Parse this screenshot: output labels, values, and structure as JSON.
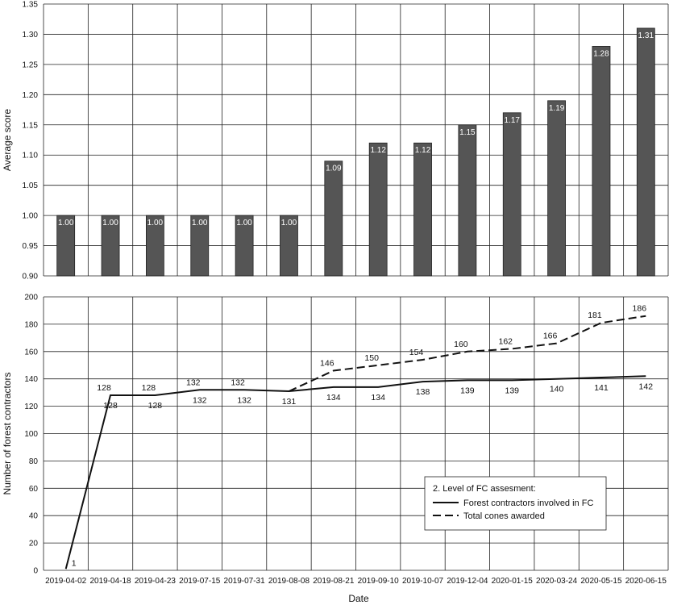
{
  "chart_data": [
    {
      "type": "bar",
      "ylabel": "Average score",
      "ylim": [
        0.9,
        1.35
      ],
      "yticks": [
        "0.90",
        "0.95",
        "1.00",
        "1.05",
        "1.10",
        "1.15",
        "1.20",
        "1.25",
        "1.30",
        "1.35"
      ],
      "grid": true,
      "categories": [
        "2019-04-02",
        "2019-04-18",
        "2019-04-23",
        "2019-07-15",
        "2019-07-31",
        "2019-08-08",
        "2019-08-21",
        "2019-09-10",
        "2019-10-07",
        "2019-12-04",
        "2020-01-15",
        "2020-03-24",
        "2020-05-15",
        "2020-06-15"
      ],
      "values": [
        1.0,
        1.0,
        1.0,
        1.0,
        1.0,
        1.0,
        1.09,
        1.12,
        1.12,
        1.15,
        1.17,
        1.19,
        1.28,
        1.31
      ],
      "value_labels": [
        "1.00",
        "1.00",
        "1.00",
        "1.00",
        "1.00",
        "1.00",
        "1.09",
        "1.12",
        "1.12",
        "1.15",
        "1.17",
        "1.19",
        "1.28",
        "1.31"
      ],
      "bar_color": "#555555"
    },
    {
      "type": "line",
      "xlabel": "Date",
      "ylabel": "Number of forest contractors",
      "ylim": [
        0,
        200
      ],
      "yticks": [
        "0",
        "20",
        "40",
        "60",
        "80",
        "100",
        "120",
        "140",
        "160",
        "180",
        "200"
      ],
      "grid": true,
      "categories": [
        "2019-04-02",
        "2019-04-18",
        "2019-04-23",
        "2019-07-15",
        "2019-07-31",
        "2019-08-08",
        "2019-08-21",
        "2019-09-10",
        "2019-10-07",
        "2019-12-04",
        "2020-01-15",
        "2020-03-24",
        "2020-05-15",
        "2020-06-15"
      ],
      "legend_title": "2. Level of FC assesment:",
      "legend_position": "bottom-right",
      "series": [
        {
          "name": "Forest contractors involved in FC",
          "style": "solid",
          "values": [
            1,
            128,
            128,
            132,
            132,
            131,
            134,
            134,
            138,
            139,
            139,
            140,
            141,
            142
          ],
          "labels": [
            "1",
            "128",
            "128",
            "132",
            "132",
            "131",
            "134",
            "134",
            "138",
            "139",
            "139",
            "140",
            "141",
            "142"
          ]
        },
        {
          "name": "Total cones awarded",
          "style": "dashed",
          "values": [
            null,
            128,
            128,
            132,
            132,
            131,
            146,
            150,
            154,
            160,
            162,
            166,
            181,
            186
          ],
          "labels": [
            "",
            "128",
            "128",
            "132",
            "132",
            "",
            "146",
            "150",
            "154",
            "160",
            "162",
            "166",
            "181",
            "186"
          ]
        }
      ]
    }
  ]
}
